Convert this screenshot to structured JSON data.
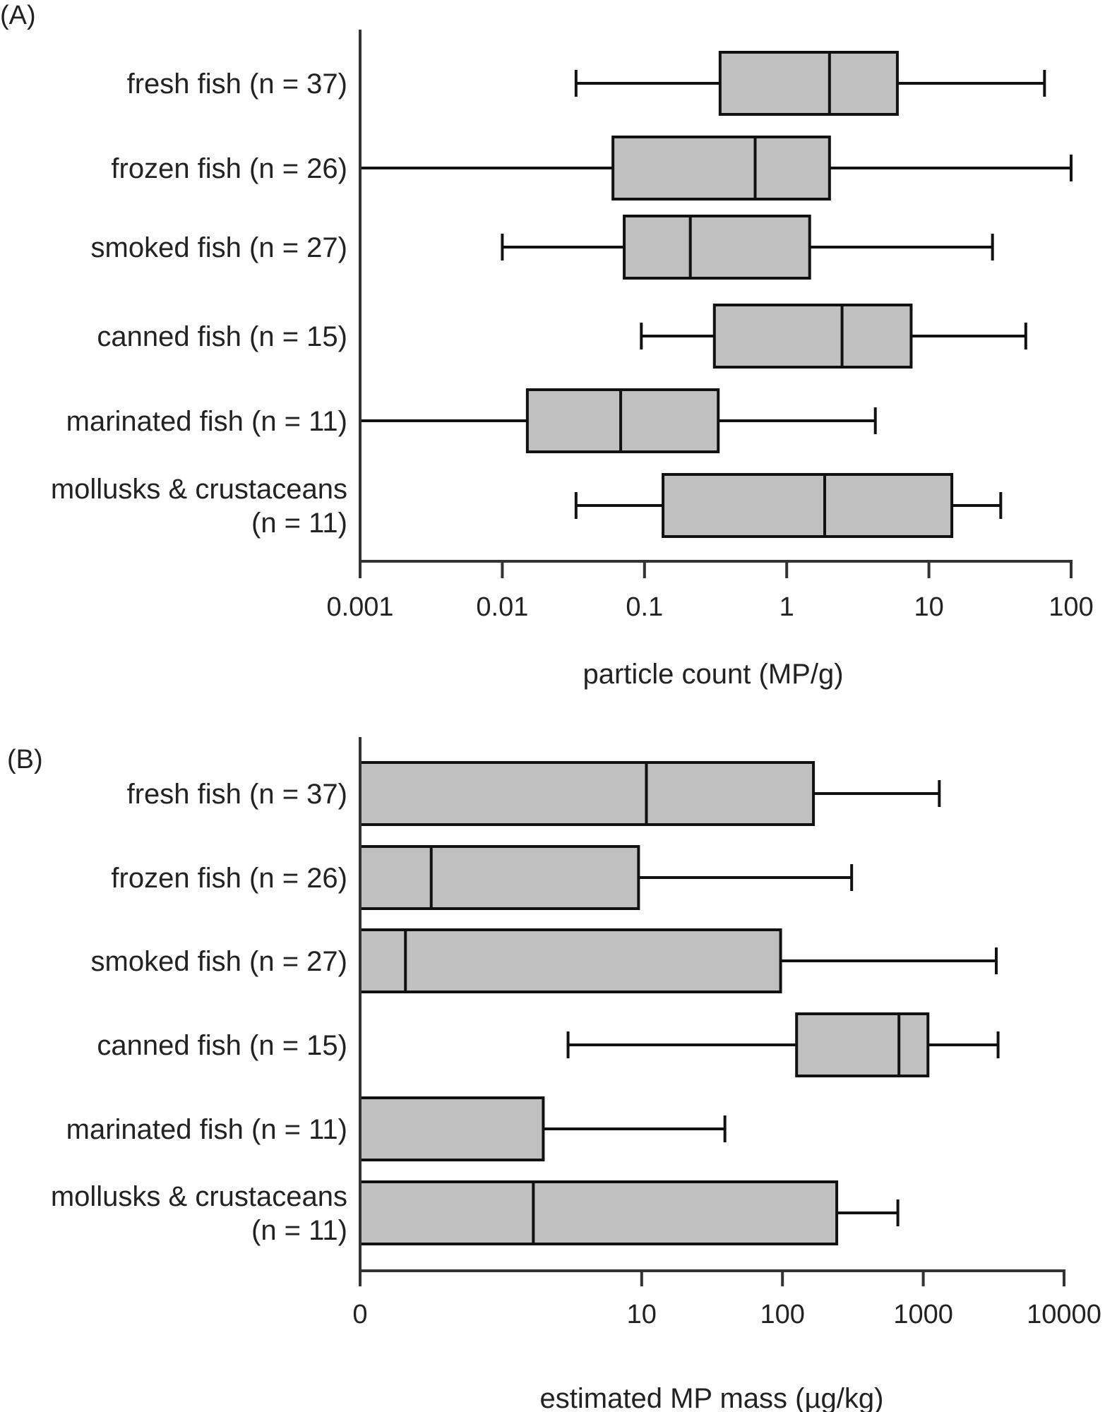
{
  "chart_data": [
    {
      "type": "box",
      "panel_label": "(A)",
      "title": "",
      "xlabel": "particle count (MP/g)",
      "ylabel": "",
      "xscale": "log",
      "xlim": [
        0.001,
        100
      ],
      "x_ticks": [
        0.001,
        0.01,
        0.1,
        1,
        10,
        100
      ],
      "x_tick_labels": [
        "0.001",
        "0.01",
        "0.1",
        "1",
        "10",
        "100"
      ],
      "grid": false,
      "categories": [
        [
          "fresh fish (n = 37)"
        ],
        [
          "frozen fish (n = 26)"
        ],
        [
          "smoked fish (n = 27)"
        ],
        [
          "canned fish (n = 15)"
        ],
        [
          "marinated fish (n = 11)"
        ],
        [
          "mollusks & crustaceans",
          "(n = 11)"
        ]
      ],
      "boxes": [
        {
          "whisker_low": 0.033,
          "q1": 0.34,
          "median": 2.0,
          "q3": 6.0,
          "whisker_high": 65
        },
        {
          "whisker_low": 0.001,
          "q1": 0.06,
          "median": 0.6,
          "q3": 2.0,
          "whisker_high": 100
        },
        {
          "whisker_low": 0.01,
          "q1": 0.072,
          "median": 0.21,
          "q3": 1.45,
          "whisker_high": 28
        },
        {
          "whisker_low": 0.095,
          "q1": 0.31,
          "median": 2.45,
          "q3": 7.5,
          "whisker_high": 48
        },
        {
          "whisker_low": 0.001,
          "q1": 0.015,
          "median": 0.068,
          "q3": 0.33,
          "whisker_high": 4.2
        },
        {
          "whisker_low": 0.033,
          "q1": 0.135,
          "median": 1.85,
          "q3": 14.5,
          "whisker_high": 32
        }
      ]
    },
    {
      "type": "box",
      "panel_label": "(B)",
      "title": "",
      "xlabel": "estimated MP mass (µg/kg)",
      "ylabel": "",
      "xscale": "log",
      "xlim": [
        0.1,
        10000
      ],
      "x_ticks": [
        0.1,
        10,
        100,
        1000,
        10000
      ],
      "x_tick_labels": [
        "0",
        "10",
        "100",
        "1000",
        "10000"
      ],
      "grid": false,
      "categories": [
        [
          "fresh fish (n = 37)"
        ],
        [
          "frozen fish (n = 26)"
        ],
        [
          "smoked fish (n = 27)"
        ],
        [
          "canned fish (n = 15)"
        ],
        [
          "marinated fish (n = 11)"
        ],
        [
          "mollusks & crustaceans",
          "(n = 11)"
        ]
      ],
      "boxes": [
        {
          "whisker_low": null,
          "q1": 0.1,
          "median": 10.8,
          "q3": 166,
          "whisker_high": 1300
        },
        {
          "whisker_low": null,
          "q1": 0.1,
          "median": 0.32,
          "q3": 9.5,
          "whisker_high": 310
        },
        {
          "whisker_low": null,
          "q1": 0.1,
          "median": 0.21,
          "q3": 97,
          "whisker_high": 3300
        },
        {
          "whisker_low": 3.0,
          "q1": 126,
          "median": 672,
          "q3": 1080,
          "whisker_high": 3400
        },
        {
          "whisker_low": null,
          "q1": 0.1,
          "median": null,
          "q3": 2.0,
          "whisker_high": 39
        },
        {
          "whisker_low": null,
          "q1": 0.1,
          "median": 1.7,
          "q3": 243,
          "whisker_high": 660
        }
      ]
    }
  ]
}
